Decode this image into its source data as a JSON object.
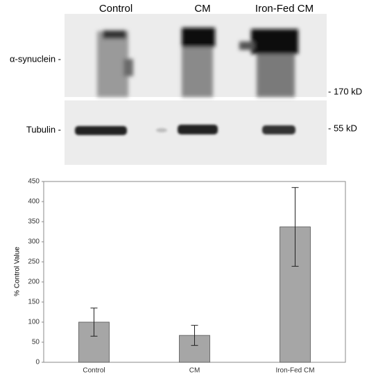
{
  "blot": {
    "lanes": [
      "Control",
      "CM",
      "Iron-Fed CM"
    ],
    "rows": [
      "α-synuclein -",
      "Tubulin -"
    ],
    "sizes": [
      "- 170 kD",
      "- 55 kD"
    ]
  },
  "chart_data": {
    "type": "bar",
    "y_label": "% Control Value",
    "categories": [
      "Control",
      "CM",
      "Iron-Fed CM"
    ],
    "values": [
      100,
      67,
      337
    ],
    "errors": [
      35,
      25,
      98
    ],
    "color": "#a6a6a6",
    "ylim": [
      0,
      450
    ],
    "yticks": [
      0,
      50,
      100,
      150,
      200,
      250,
      300,
      350,
      400,
      450
    ]
  }
}
